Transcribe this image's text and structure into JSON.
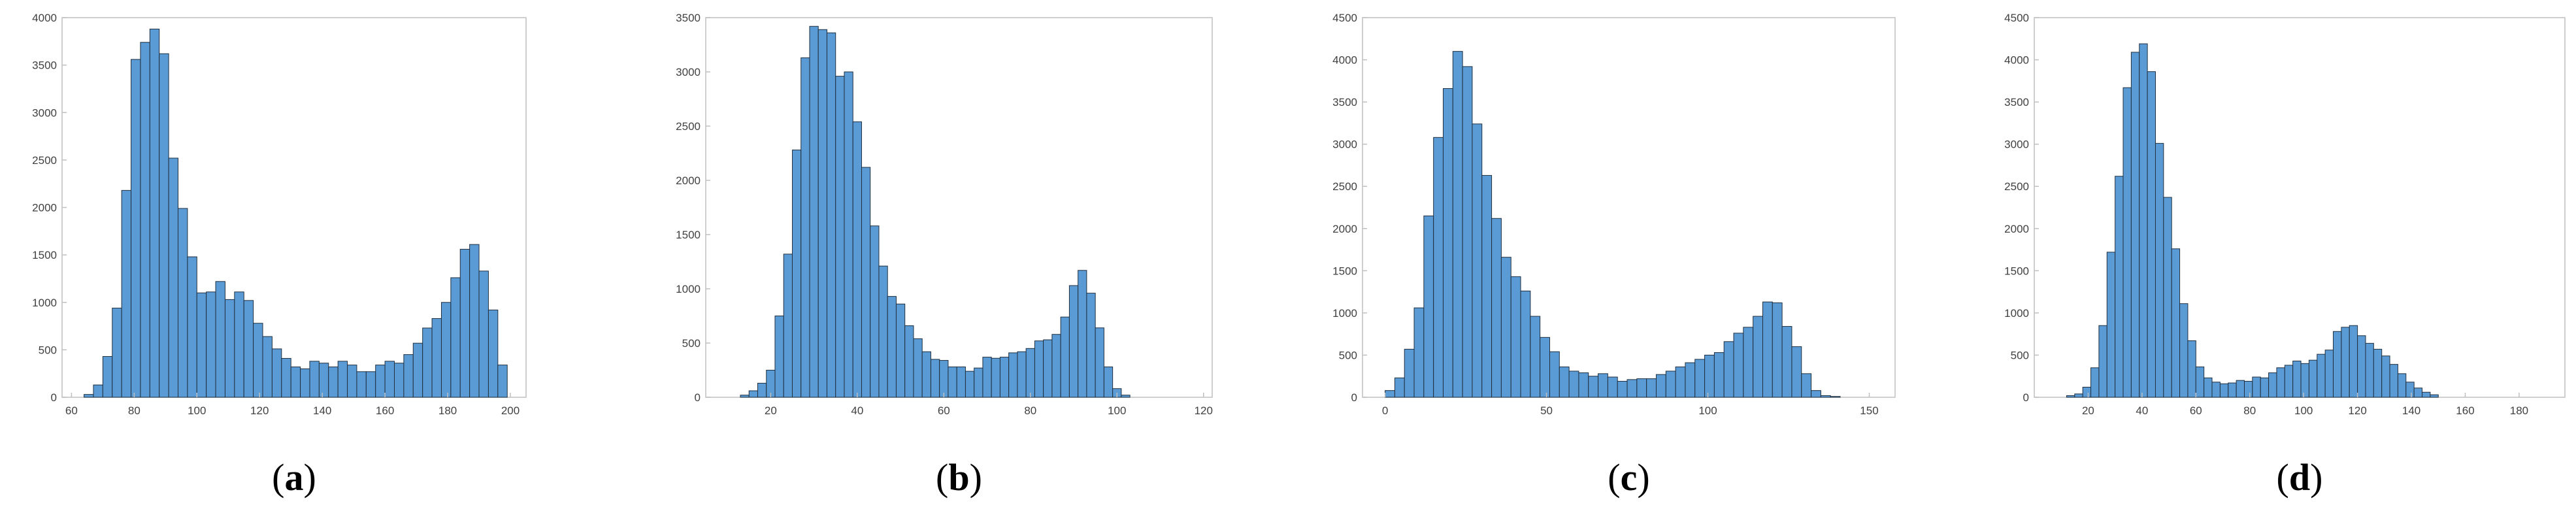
{
  "colors": {
    "bar_fill": "#5b9bd5",
    "bar_edge": "#1f2f3f",
    "axis": "#bfbfbf",
    "text": "#404040"
  },
  "chart_data": [
    {
      "type": "bar",
      "title": "",
      "caption": {
        "open": "(",
        "letter": "a",
        "close": ")"
      },
      "xlim": [
        57,
        205
      ],
      "ylim": [
        0,
        4000
      ],
      "xticks": [
        "60",
        "80",
        "100",
        "120",
        "140",
        "160",
        "180",
        "200"
      ],
      "yticks": [
        "0",
        "500",
        "1000",
        "1500",
        "2000",
        "2500",
        "3000",
        "3500",
        "4000"
      ],
      "grid": false,
      "bin_start": 64,
      "bin_width": 3,
      "values": [
        30,
        130,
        430,
        940,
        2180,
        3560,
        3740,
        3880,
        3620,
        2520,
        1990,
        1480,
        1100,
        1110,
        1220,
        1030,
        1110,
        1020,
        780,
        640,
        510,
        410,
        320,
        300,
        380,
        360,
        320,
        380,
        340,
        270,
        270,
        340,
        380,
        360,
        450,
        570,
        730,
        830,
        1000,
        1260,
        1560,
        1610,
        1330,
        920,
        340
      ]
    },
    {
      "type": "bar",
      "title": "",
      "caption": {
        "open": "(",
        "letter": "b",
        "close": ")"
      },
      "xlim": [
        5,
        122
      ],
      "ylim": [
        0,
        3500
      ],
      "xticks": [
        "20",
        "40",
        "60",
        "80",
        "100",
        "120"
      ],
      "yticks": [
        "0",
        "500",
        "1000",
        "1500",
        "2000",
        "2500",
        "3000",
        "3500"
      ],
      "grid": false,
      "bin_start": 13,
      "bin_width": 2,
      "values": [
        20,
        60,
        130,
        250,
        750,
        1320,
        2280,
        3130,
        3420,
        3390,
        3360,
        2960,
        3000,
        2540,
        2120,
        1580,
        1210,
        930,
        860,
        660,
        540,
        420,
        350,
        340,
        280,
        280,
        240,
        270,
        370,
        360,
        370,
        410,
        420,
        450,
        520,
        530,
        580,
        740,
        1030,
        1170,
        960,
        640,
        280,
        80,
        20
      ]
    },
    {
      "type": "bar",
      "title": "",
      "caption": {
        "open": "(",
        "letter": "c",
        "close": ")"
      },
      "xlim": [
        -7,
        158
      ],
      "ylim": [
        0,
        4500
      ],
      "xticks": [
        "0",
        "50",
        "100",
        "150"
      ],
      "yticks": [
        "0",
        "500",
        "1000",
        "1500",
        "2000",
        "2500",
        "3000",
        "3500",
        "4000",
        "4500"
      ],
      "grid": false,
      "bin_start": 0,
      "bin_width": 3,
      "values": [
        80,
        230,
        570,
        1060,
        2150,
        3080,
        3660,
        4100,
        3920,
        3240,
        2630,
        2120,
        1660,
        1430,
        1260,
        960,
        710,
        540,
        360,
        310,
        290,
        250,
        280,
        240,
        190,
        210,
        220,
        220,
        270,
        310,
        360,
        410,
        450,
        500,
        530,
        660,
        760,
        830,
        960,
        1130,
        1120,
        840,
        600,
        280,
        80,
        20,
        10
      ]
    },
    {
      "type": "bar",
      "title": "",
      "caption": {
        "open": "(",
        "letter": "d",
        "close": ")"
      },
      "xlim": [
        0,
        197
      ],
      "ylim": [
        0,
        4500
      ],
      "xticks": [
        "20",
        "40",
        "60",
        "80",
        "100",
        "120",
        "140",
        "160",
        "180"
      ],
      "yticks": [
        "0",
        "500",
        "1000",
        "1500",
        "2000",
        "2500",
        "3000",
        "3500",
        "4000",
        "4500"
      ],
      "grid": false,
      "bin_start": 12,
      "bin_width": 3,
      "values": [
        20,
        40,
        120,
        350,
        850,
        1720,
        2620,
        3670,
        4090,
        4190,
        3860,
        3010,
        2370,
        1760,
        1110,
        670,
        360,
        230,
        180,
        160,
        170,
        200,
        190,
        240,
        230,
        290,
        350,
        380,
        430,
        400,
        440,
        510,
        560,
        780,
        830,
        850,
        730,
        640,
        570,
        490,
        390,
        280,
        180,
        110,
        60,
        30
      ]
    }
  ]
}
